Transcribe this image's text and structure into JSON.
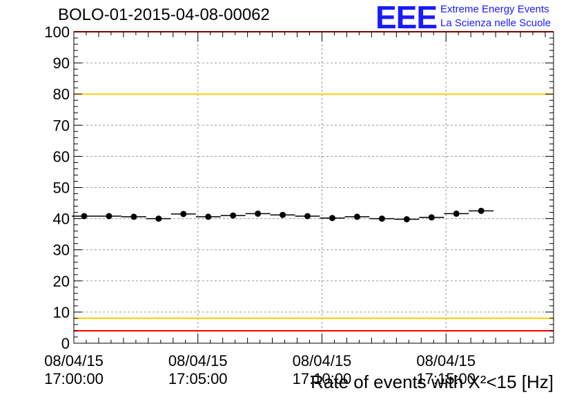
{
  "header": {
    "title": "BOLO-01-2015-04-08-00062"
  },
  "logo": {
    "mark": "EEE",
    "line1": "Extreme Energy Events",
    "line2": "La Scienza nelle Scuole",
    "color": "#1a1aff"
  },
  "chart_data": {
    "type": "scatter",
    "title": "BOLO-01-2015-04-08-00062",
    "xlabel": "Rate of events with Χ²<15 [Hz]",
    "ylabel": "",
    "ylim": [
      0,
      100
    ],
    "yticks": [
      "0",
      "10",
      "20",
      "30",
      "40",
      "50",
      "60",
      "70",
      "80",
      "90",
      "100"
    ],
    "xticks": [
      {
        "date": "08/04/15",
        "time": "17:00:00"
      },
      {
        "date": "08/04/15",
        "time": "17:05:00"
      },
      {
        "date": "08/04/15",
        "time": "17:10:00"
      },
      {
        "date": "08/04/15",
        "time": "17:15:00"
      }
    ],
    "grid": true,
    "series": [
      {
        "marker": "filled-circle",
        "color": "#000000",
        "x": [
          "17:00:25",
          "17:01:25",
          "17:02:25",
          "17:03:25",
          "17:04:25",
          "17:05:25",
          "17:06:25",
          "17:07:25",
          "17:08:25",
          "17:09:25",
          "17:10:25",
          "17:11:25",
          "17:12:25",
          "17:13:25",
          "17:14:25",
          "17:15:25",
          "17:16:25"
        ],
        "values": [
          40.8,
          40.8,
          40.6,
          40.0,
          41.5,
          40.6,
          41.0,
          41.6,
          41.2,
          40.8,
          40.2,
          40.6,
          40.0,
          39.8,
          40.4,
          41.6,
          42.5
        ]
      }
    ],
    "reference_lines": [
      {
        "y": 80,
        "color": "#ffcc00"
      },
      {
        "y": 8,
        "color": "#ffcc00"
      },
      {
        "y": 4,
        "color": "#ff0000"
      },
      {
        "y": 100,
        "color": "#ff0000"
      }
    ]
  }
}
